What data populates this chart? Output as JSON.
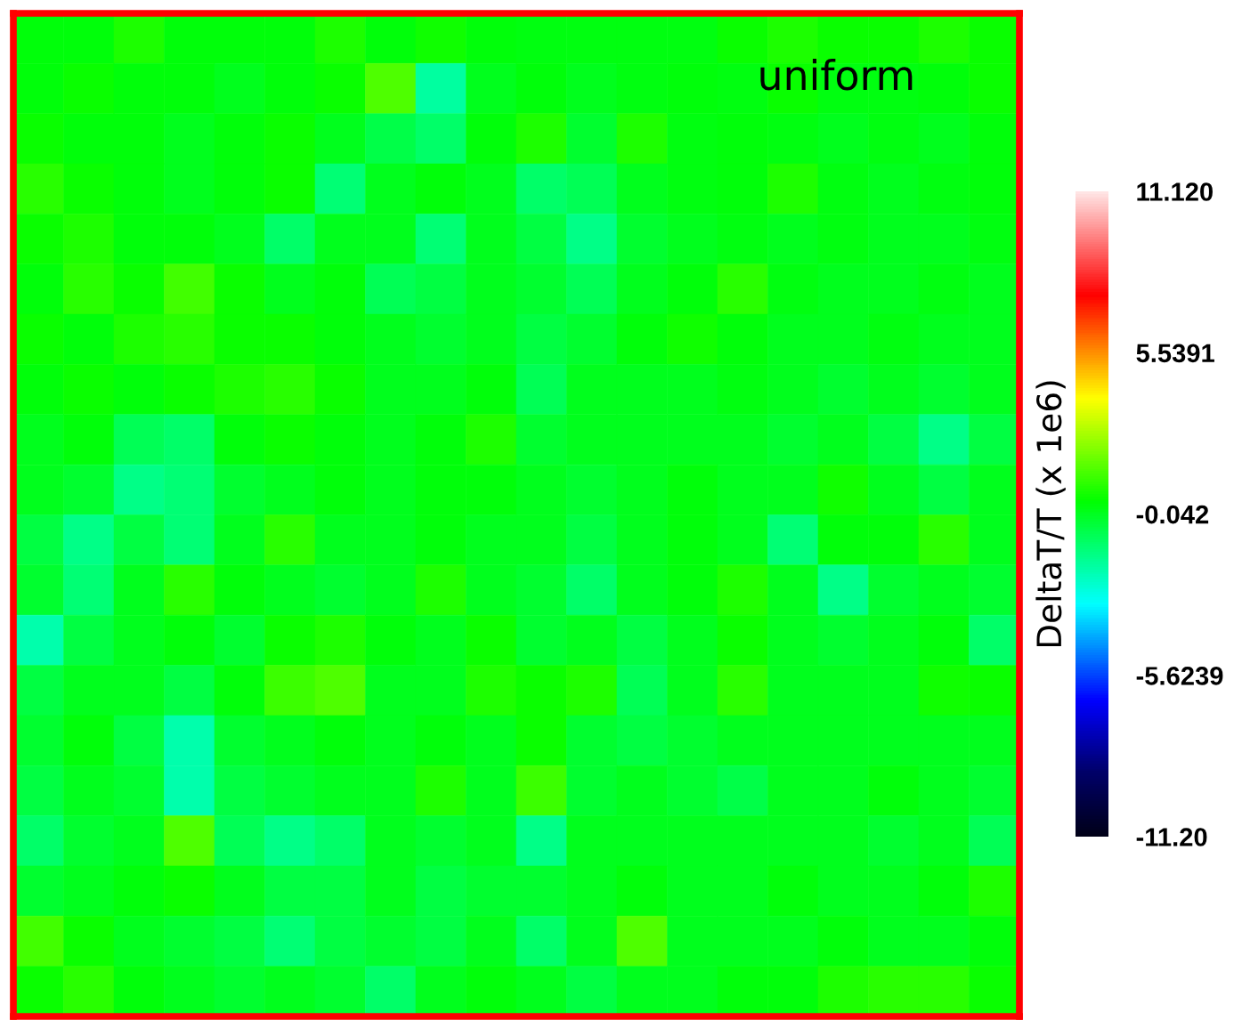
{
  "chart_data": {
    "type": "heatmap",
    "title": "uniform",
    "clabel": "DeltaT/T (x 1e6)",
    "categories": [
      null,
      null,
      null,
      null,
      null,
      null,
      null,
      null,
      null,
      null,
      null,
      null,
      null,
      null,
      null,
      null,
      null,
      null,
      null,
      null
    ],
    "y_categories": [
      null,
      null,
      null,
      null,
      null,
      null,
      null,
      null,
      null,
      null,
      null,
      null,
      null,
      null,
      null,
      null,
      null,
      null,
      null,
      null
    ],
    "cells": [
      [
        0.3,
        0.3,
        0.8,
        0.3,
        0.3,
        0.3,
        0.8,
        0.3,
        0.6,
        0.3,
        0.2,
        0.2,
        0.2,
        0.2,
        0.5,
        0.8,
        0.5,
        0.5,
        0.8,
        0.5
      ],
      [
        0.3,
        0.5,
        0.3,
        0.3,
        0.0,
        0.3,
        0.5,
        1.5,
        -1.8,
        0.0,
        0.3,
        0.0,
        0.2,
        0.3,
        0.2,
        0.5,
        0.2,
        0.2,
        0.3,
        0.5
      ],
      [
        0.5,
        0.3,
        0.3,
        0.0,
        0.3,
        0.5,
        0.0,
        -0.6,
        -1.0,
        0.3,
        0.8,
        -0.3,
        0.8,
        0.2,
        0.3,
        0.2,
        0.0,
        0.2,
        0.0,
        0.3
      ],
      [
        1.0,
        0.5,
        0.3,
        0.0,
        0.3,
        0.5,
        -1.2,
        0.0,
        0.3,
        0.0,
        -1.0,
        -0.8,
        0.0,
        0.2,
        0.3,
        0.8,
        0.2,
        0.0,
        0.2,
        0.3
      ],
      [
        0.5,
        0.8,
        0.3,
        0.3,
        0.0,
        -1.0,
        0.0,
        0.0,
        -1.2,
        0.0,
        -0.5,
        -1.5,
        -0.3,
        0.0,
        0.2,
        0.0,
        0.2,
        0.0,
        0.0,
        0.2
      ],
      [
        0.3,
        1.0,
        0.5,
        1.3,
        0.5,
        0.0,
        0.3,
        -0.8,
        -0.5,
        0.0,
        -0.3,
        -0.8,
        0.0,
        0.3,
        1.0,
        0.2,
        0.0,
        0.0,
        0.2,
        0.0
      ],
      [
        0.5,
        0.3,
        0.8,
        1.0,
        0.5,
        0.5,
        0.3,
        0.0,
        -0.3,
        0.0,
        -0.5,
        -0.3,
        0.3,
        0.6,
        0.3,
        0.0,
        0.0,
        0.2,
        0.0,
        0.0
      ],
      [
        0.3,
        0.5,
        0.3,
        0.5,
        0.8,
        1.0,
        0.5,
        0.0,
        0.0,
        0.3,
        -0.8,
        0.0,
        0.0,
        0.0,
        0.2,
        0.0,
        -0.3,
        0.0,
        -0.3,
        0.0
      ],
      [
        0.0,
        0.3,
        -0.8,
        -1.0,
        0.3,
        0.5,
        0.3,
        0.0,
        0.3,
        0.8,
        -0.3,
        0.0,
        0.0,
        0.0,
        0.0,
        -0.3,
        0.0,
        -0.5,
        -1.5,
        -0.5
      ],
      [
        0.0,
        -0.3,
        -1.5,
        -1.2,
        -0.3,
        0.0,
        0.3,
        0.0,
        0.3,
        0.3,
        0.0,
        -0.3,
        0.0,
        0.3,
        0.0,
        0.0,
        0.6,
        0.0,
        -0.5,
        0.0
      ],
      [
        -0.5,
        -1.5,
        -0.5,
        -1.2,
        0.0,
        1.0,
        0.0,
        0.0,
        0.3,
        0.0,
        0.0,
        -0.5,
        0.0,
        0.3,
        0.0,
        -1.2,
        0.3,
        0.3,
        1.0,
        0.0
      ],
      [
        -0.3,
        -1.2,
        0.0,
        1.0,
        0.3,
        0.0,
        -0.3,
        0.0,
        0.8,
        0.0,
        -0.3,
        -1.0,
        0.0,
        0.3,
        0.8,
        0.0,
        -1.5,
        -0.3,
        0.0,
        -0.3
      ],
      [
        -2.0,
        -0.5,
        0.0,
        0.3,
        -0.3,
        0.5,
        0.8,
        0.3,
        0.0,
        0.5,
        -0.3,
        0.0,
        -0.5,
        0.0,
        0.5,
        0.0,
        -0.3,
        0.0,
        0.3,
        -1.0
      ],
      [
        -0.5,
        0.0,
        0.0,
        -0.5,
        0.3,
        1.2,
        1.5,
        0.0,
        0.0,
        0.8,
        0.5,
        0.8,
        -0.8,
        0.0,
        1.0,
        0.0,
        0.0,
        0.0,
        0.6,
        0.5
      ],
      [
        -0.3,
        0.3,
        -0.5,
        -2.0,
        -0.3,
        0.0,
        0.3,
        0.0,
        0.3,
        0.0,
        0.5,
        -0.3,
        -0.5,
        -0.3,
        0.0,
        0.0,
        0.0,
        0.0,
        0.0,
        0.0
      ],
      [
        -0.5,
        0.0,
        -0.3,
        -2.0,
        -0.5,
        -0.3,
        0.0,
        0.0,
        0.8,
        0.0,
        1.2,
        -0.3,
        0.0,
        -0.3,
        -0.6,
        0.0,
        0.0,
        0.3,
        0.0,
        -0.3
      ],
      [
        -1.0,
        -0.3,
        0.0,
        1.5,
        -0.8,
        -1.5,
        -1.0,
        0.0,
        -0.3,
        0.0,
        -1.5,
        0.0,
        0.0,
        0.0,
        0.0,
        0.0,
        0.0,
        -0.3,
        0.0,
        -0.8
      ],
      [
        -0.3,
        0.0,
        0.3,
        0.5,
        0.0,
        -0.5,
        -0.5,
        0.0,
        -0.5,
        -0.3,
        -0.3,
        0.0,
        0.3,
        0.0,
        0.0,
        0.3,
        0.0,
        0.0,
        0.3,
        0.8
      ],
      [
        1.3,
        0.5,
        0.0,
        -0.3,
        -0.5,
        -1.2,
        -0.5,
        -0.3,
        -0.5,
        0.0,
        -1.0,
        0.0,
        1.5,
        0.0,
        0.0,
        0.0,
        0.3,
        0.0,
        0.0,
        0.3
      ],
      [
        0.5,
        1.0,
        0.3,
        0.0,
        -0.3,
        0.0,
        -0.3,
        -1.0,
        0.0,
        0.3,
        0.0,
        -0.5,
        0.0,
        0.0,
        0.3,
        0.3,
        0.8,
        1.0,
        1.0,
        0.5
      ]
    ],
    "clim": [
      -11.2,
      11.12
    ],
    "cticks": [
      {
        "value": 11.12,
        "label": "11.120"
      },
      5.5391,
      -0.042,
      -5.6239,
      {
        "value": -11.2,
        "label": "-11.20"
      }
    ],
    "tick_labels": false
  }
}
